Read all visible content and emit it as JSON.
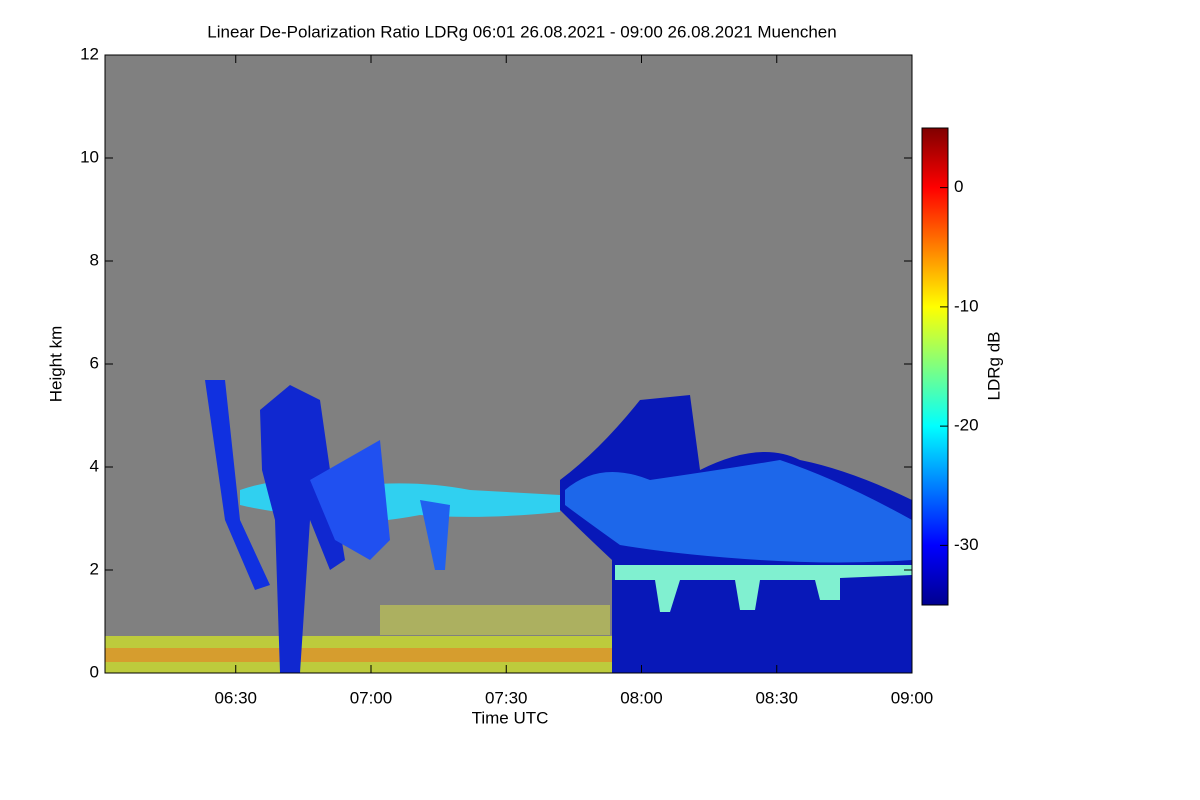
{
  "chart_data": {
    "type": "heatmap",
    "title": "Linear De-Polarization Ratio LDRg   06:01 26.08.2021 - 09:00 26.08.2021 Muenchen",
    "x_label": "Time UTC",
    "y_label": "Height km",
    "xlim": [
      361,
      540
    ],
    "xticks": [
      {
        "value": 390,
        "label": "06:30"
      },
      {
        "value": 420,
        "label": "07:00"
      },
      {
        "value": 450,
        "label": "07:30"
      },
      {
        "value": 480,
        "label": "08:00"
      },
      {
        "value": 510,
        "label": "08:30"
      },
      {
        "value": 540,
        "label": "09:00"
      }
    ],
    "ylim": [
      0,
      12
    ],
    "yticks": [
      0,
      2,
      4,
      6,
      8,
      10,
      12
    ],
    "colorbar": {
      "label": "LDRg dB",
      "colormap": "jet",
      "lim": [
        -35,
        5
      ],
      "ticks": [
        0,
        -10,
        -20,
        -30
      ]
    },
    "background": "#808080"
  }
}
